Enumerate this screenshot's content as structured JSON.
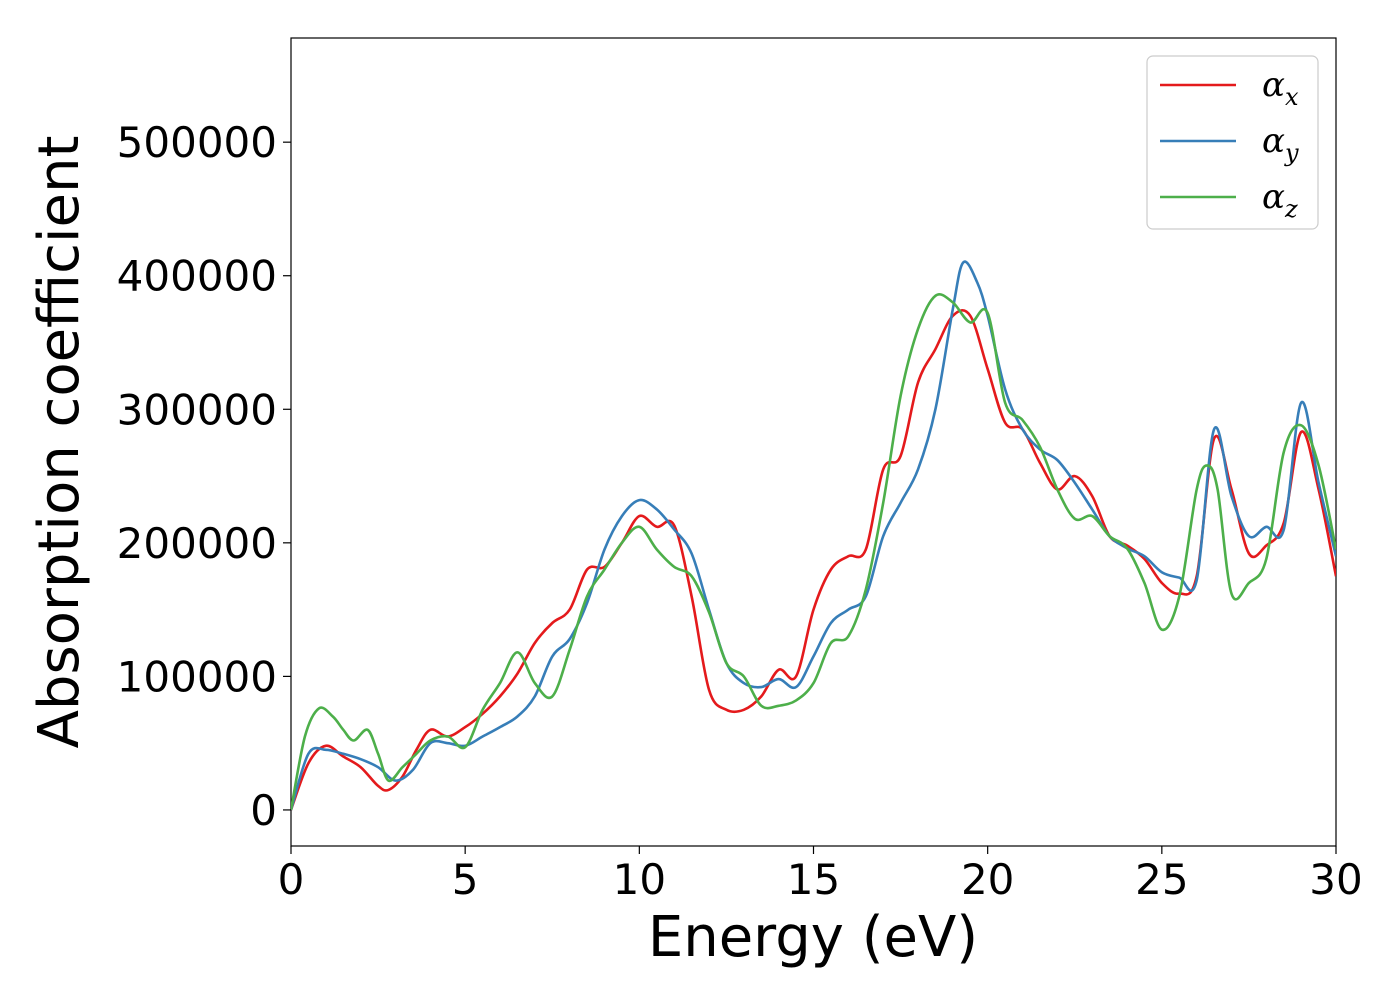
{
  "chart_data": {
    "type": "line",
    "xlabel": "Energy (eV)",
    "ylabel": "Absorption coefficient",
    "xlim": [
      0,
      30
    ],
    "ylim": [
      -27000,
      578000
    ],
    "xticks": [
      0,
      5,
      10,
      15,
      20,
      25,
      30
    ],
    "xtick_labels": [
      "0",
      "5",
      "10",
      "15",
      "20",
      "25",
      "30"
    ],
    "yticks": [
      0,
      100000,
      200000,
      300000,
      400000,
      500000
    ],
    "ytick_labels": [
      "0",
      "100000",
      "200000",
      "300000",
      "400000",
      "500000"
    ],
    "grid": false,
    "legend_position": "top-right",
    "series": [
      {
        "name": "α",
        "sub": "x",
        "color": "#e41a1c",
        "x": [
          0,
          0.5,
          1.0,
          1.5,
          2.0,
          2.5,
          2.8,
          3.2,
          3.6,
          4.0,
          4.5,
          5.0,
          5.5,
          6.0,
          6.5,
          7.0,
          7.5,
          8.0,
          8.5,
          9.0,
          9.5,
          10.0,
          10.5,
          11.0,
          11.5,
          12.0,
          12.5,
          13.0,
          13.5,
          14.0,
          14.5,
          15.0,
          15.5,
          16.0,
          16.5,
          17.0,
          17.5,
          18.0,
          18.5,
          19.0,
          19.5,
          20.0,
          20.5,
          21.0,
          21.5,
          22.0,
          22.5,
          23.0,
          23.5,
          24.0,
          24.5,
          25.0,
          25.5,
          26.0,
          26.5,
          27.0,
          27.5,
          28.0,
          28.5,
          29.0,
          29.5,
          30.0
        ],
        "y": [
          0,
          35000,
          48000,
          40000,
          32000,
          18000,
          15000,
          25000,
          45000,
          60000,
          55000,
          62000,
          72000,
          85000,
          102000,
          125000,
          140000,
          150000,
          180000,
          182000,
          200000,
          220000,
          212000,
          213000,
          160000,
          90000,
          75000,
          75000,
          85000,
          105000,
          100000,
          150000,
          180000,
          190000,
          195000,
          255000,
          265000,
          320000,
          345000,
          370000,
          370000,
          330000,
          290000,
          285000,
          260000,
          240000,
          250000,
          235000,
          205000,
          198000,
          188000,
          170000,
          162000,
          175000,
          278000,
          240000,
          192000,
          198000,
          215000,
          283000,
          240000,
          175000
        ]
      },
      {
        "name": "α",
        "sub": "y",
        "color": "#377eb8",
        "x": [
          0,
          0.5,
          1.0,
          1.5,
          2.0,
          2.5,
          3.0,
          3.5,
          4.0,
          4.5,
          5.0,
          5.5,
          6.0,
          6.5,
          7.0,
          7.5,
          8.0,
          8.5,
          9.0,
          9.5,
          10.0,
          10.5,
          11.0,
          11.5,
          12.0,
          12.5,
          13.0,
          13.5,
          14.0,
          14.5,
          15.0,
          15.5,
          16.0,
          16.5,
          17.0,
          17.5,
          18.0,
          18.5,
          19.0,
          19.3,
          19.7,
          20.0,
          20.5,
          21.0,
          21.5,
          22.0,
          22.5,
          23.0,
          23.5,
          24.0,
          24.5,
          25.0,
          25.5,
          26.0,
          26.5,
          27.0,
          27.5,
          28.0,
          28.5,
          29.0,
          29.5,
          30.0
        ],
        "y": [
          0,
          42000,
          45000,
          42000,
          38000,
          32000,
          22000,
          30000,
          50000,
          50000,
          48000,
          55000,
          62000,
          70000,
          85000,
          115000,
          128000,
          155000,
          195000,
          220000,
          232000,
          225000,
          210000,
          192000,
          150000,
          110000,
          95000,
          92000,
          98000,
          92000,
          115000,
          140000,
          150000,
          160000,
          205000,
          230000,
          255000,
          300000,
          375000,
          410000,
          395000,
          370000,
          315000,
          285000,
          270000,
          262000,
          245000,
          225000,
          205000,
          196000,
          190000,
          178000,
          174000,
          172000,
          285000,
          235000,
          205000,
          212000,
          210000,
          305000,
          245000,
          190000
        ]
      },
      {
        "name": "α",
        "sub": "z",
        "color": "#4daf4a",
        "x": [
          0,
          0.4,
          0.8,
          1.2,
          1.5,
          1.8,
          2.2,
          2.5,
          2.8,
          3.2,
          3.6,
          4.0,
          4.5,
          5.0,
          5.5,
          6.0,
          6.5,
          7.0,
          7.5,
          8.0,
          8.5,
          9.0,
          9.5,
          10.0,
          10.5,
          11.0,
          11.5,
          12.0,
          12.5,
          13.0,
          13.5,
          14.0,
          14.5,
          15.0,
          15.5,
          16.0,
          16.5,
          17.0,
          17.5,
          18.0,
          18.5,
          19.0,
          19.5,
          20.0,
          20.5,
          21.0,
          21.5,
          22.0,
          22.5,
          23.0,
          23.5,
          24.0,
          24.5,
          25.0,
          25.5,
          26.0,
          26.3,
          26.6,
          27.0,
          27.5,
          28.0,
          28.5,
          29.0,
          29.5,
          30.0
        ],
        "y": [
          0,
          55000,
          76000,
          70000,
          60000,
          52000,
          60000,
          42000,
          22000,
          32000,
          42000,
          52000,
          55000,
          47000,
          75000,
          95000,
          118000,
          95000,
          85000,
          120000,
          160000,
          180000,
          200000,
          212000,
          195000,
          182000,
          175000,
          148000,
          110000,
          100000,
          78000,
          78000,
          82000,
          95000,
          125000,
          130000,
          165000,
          230000,
          310000,
          360000,
          385000,
          380000,
          365000,
          372000,
          305000,
          292000,
          272000,
          240000,
          218000,
          220000,
          205000,
          196000,
          170000,
          135000,
          160000,
          240000,
          258000,
          240000,
          162000,
          170000,
          188000,
          268000,
          288000,
          258000,
          195000
        ]
      }
    ]
  }
}
